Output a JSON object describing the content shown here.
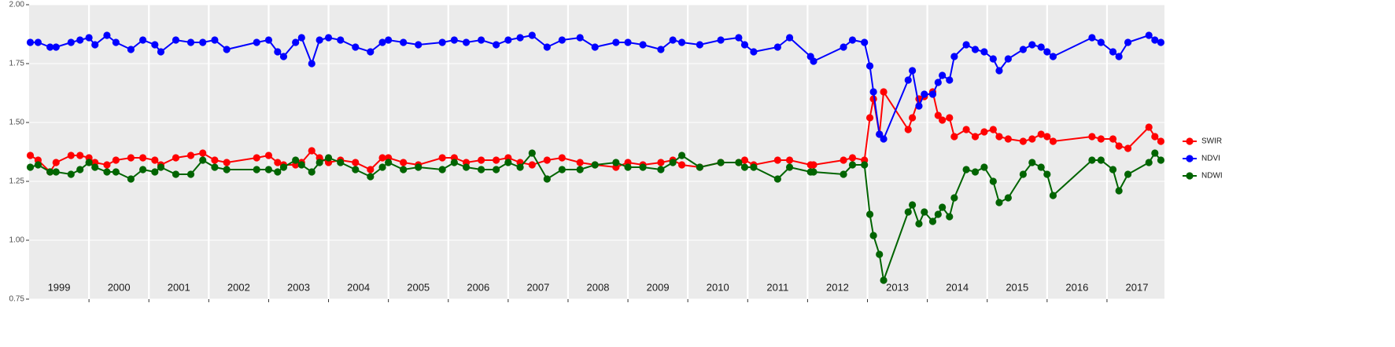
{
  "chart_data": {
    "type": "line",
    "x": [
      1999.02,
      1999.15,
      1999.35,
      1999.45,
      1999.7,
      1999.85,
      2000.0,
      2000.1,
      2000.3,
      2000.45,
      2000.7,
      2000.9,
      2001.1,
      2001.2,
      2001.45,
      2001.7,
      2001.9,
      2002.1,
      2002.3,
      2002.8,
      2003.0,
      2003.15,
      2003.25,
      2003.45,
      2003.55,
      2003.72,
      2003.85,
      2004.0,
      2004.2,
      2004.45,
      2004.7,
      2004.9,
      2005.0,
      2005.25,
      2005.5,
      2005.9,
      2006.1,
      2006.3,
      2006.55,
      2006.8,
      2007.0,
      2007.2,
      2007.4,
      2007.65,
      2007.9,
      2008.2,
      2008.45,
      2008.8,
      2009.0,
      2009.25,
      2009.55,
      2009.75,
      2009.9,
      2010.2,
      2010.55,
      2010.85,
      2010.95,
      2011.1,
      2011.5,
      2011.7,
      2012.05,
      2012.1,
      2012.6,
      2012.75,
      2012.95,
      2013.04,
      2013.1,
      2013.2,
      2013.27,
      2013.68,
      2013.75,
      2013.86,
      2013.95,
      2014.09,
      2014.18,
      2014.25,
      2014.37,
      2014.45,
      2014.65,
      2014.8,
      2014.95,
      2015.1,
      2015.2,
      2015.35,
      2015.6,
      2015.75,
      2015.9,
      2016.0,
      2016.1,
      2016.75,
      2016.9,
      2017.1,
      2017.2,
      2017.35,
      2017.7,
      2017.8,
      2017.9
    ],
    "series": [
      {
        "name": "SWIR",
        "color": "#ff0000",
        "values": [
          1.36,
          1.34,
          1.29,
          1.33,
          1.36,
          1.36,
          1.35,
          1.33,
          1.32,
          1.34,
          1.35,
          1.35,
          1.34,
          1.32,
          1.35,
          1.36,
          1.37,
          1.34,
          1.33,
          1.35,
          1.36,
          1.33,
          1.32,
          1.32,
          1.33,
          1.38,
          1.35,
          1.33,
          1.34,
          1.33,
          1.3,
          1.35,
          1.35,
          1.33,
          1.32,
          1.35,
          1.35,
          1.33,
          1.34,
          1.34,
          1.35,
          1.33,
          1.32,
          1.34,
          1.35,
          1.33,
          1.32,
          1.31,
          1.33,
          1.32,
          1.33,
          1.34,
          1.32,
          1.31,
          1.33,
          1.33,
          1.34,
          1.32,
          1.34,
          1.34,
          1.32,
          1.32,
          1.34,
          1.35,
          1.34,
          1.52,
          1.6,
          1.45,
          1.63,
          1.47,
          1.52,
          1.6,
          1.61,
          1.63,
          1.53,
          1.51,
          1.52,
          1.44,
          1.47,
          1.44,
          1.46,
          1.47,
          1.44,
          1.43,
          1.42,
          1.43,
          1.45,
          1.44,
          1.42,
          1.44,
          1.43,
          1.43,
          1.4,
          1.39,
          1.48,
          1.44,
          1.42
        ]
      },
      {
        "name": "NDVI",
        "color": "#0000ff",
        "values": [
          1.84,
          1.84,
          1.82,
          1.82,
          1.84,
          1.85,
          1.86,
          1.83,
          1.87,
          1.84,
          1.81,
          1.85,
          1.83,
          1.8,
          1.85,
          1.84,
          1.84,
          1.85,
          1.81,
          1.84,
          1.85,
          1.8,
          1.78,
          1.84,
          1.86,
          1.75,
          1.85,
          1.86,
          1.85,
          1.82,
          1.8,
          1.84,
          1.85,
          1.84,
          1.83,
          1.84,
          1.85,
          1.84,
          1.85,
          1.83,
          1.85,
          1.86,
          1.87,
          1.82,
          1.85,
          1.86,
          1.82,
          1.84,
          1.84,
          1.83,
          1.81,
          1.85,
          1.84,
          1.83,
          1.85,
          1.86,
          1.83,
          1.8,
          1.82,
          1.86,
          1.78,
          1.76,
          1.82,
          1.85,
          1.84,
          1.74,
          1.63,
          1.45,
          1.43,
          1.68,
          1.72,
          1.57,
          1.62,
          1.62,
          1.67,
          1.7,
          1.68,
          1.78,
          1.83,
          1.81,
          1.8,
          1.77,
          1.72,
          1.77,
          1.81,
          1.83,
          1.82,
          1.8,
          1.78,
          1.86,
          1.84,
          1.8,
          1.78,
          1.84,
          1.87,
          1.85,
          1.84
        ]
      },
      {
        "name": "NDWI",
        "color": "#006400",
        "values": [
          1.31,
          1.32,
          1.29,
          1.29,
          1.28,
          1.3,
          1.33,
          1.31,
          1.29,
          1.29,
          1.26,
          1.3,
          1.29,
          1.31,
          1.28,
          1.28,
          1.34,
          1.31,
          1.3,
          1.3,
          1.3,
          1.29,
          1.31,
          1.34,
          1.32,
          1.29,
          1.33,
          1.35,
          1.33,
          1.3,
          1.27,
          1.31,
          1.33,
          1.3,
          1.31,
          1.3,
          1.33,
          1.31,
          1.3,
          1.3,
          1.33,
          1.31,
          1.37,
          1.26,
          1.3,
          1.3,
          1.32,
          1.33,
          1.31,
          1.31,
          1.3,
          1.33,
          1.36,
          1.31,
          1.33,
          1.33,
          1.31,
          1.31,
          1.26,
          1.31,
          1.29,
          1.29,
          1.28,
          1.32,
          1.32,
          1.11,
          1.02,
          0.94,
          0.83,
          1.12,
          1.15,
          1.07,
          1.12,
          1.08,
          1.11,
          1.14,
          1.1,
          1.18,
          1.3,
          1.29,
          1.31,
          1.25,
          1.16,
          1.18,
          1.28,
          1.33,
          1.31,
          1.28,
          1.19,
          1.34,
          1.34,
          1.3,
          1.21,
          1.28,
          1.33,
          1.37,
          1.34
        ]
      }
    ],
    "xlim": [
      1999.0,
      2017.96
    ],
    "xticks": [
      2000,
      2001,
      2002,
      2003,
      2004,
      2005,
      2006,
      2007,
      2008,
      2009,
      2010,
      2011,
      2012,
      2013,
      2014,
      2015,
      2016,
      2017
    ],
    "year_labels": [
      {
        "value": 1999.5,
        "label": "1999"
      },
      {
        "value": 2000.5,
        "label": "2000"
      },
      {
        "value": 2001.5,
        "label": "2001"
      },
      {
        "value": 2002.5,
        "label": "2002"
      },
      {
        "value": 2003.5,
        "label": "2003"
      },
      {
        "value": 2004.5,
        "label": "2004"
      },
      {
        "value": 2005.5,
        "label": "2005"
      },
      {
        "value": 2006.5,
        "label": "2006"
      },
      {
        "value": 2007.5,
        "label": "2007"
      },
      {
        "value": 2008.5,
        "label": "2008"
      },
      {
        "value": 2009.5,
        "label": "2009"
      },
      {
        "value": 2010.5,
        "label": "2010"
      },
      {
        "value": 2011.5,
        "label": "2011"
      },
      {
        "value": 2012.5,
        "label": "2012"
      },
      {
        "value": 2013.5,
        "label": "2013"
      },
      {
        "value": 2014.5,
        "label": "2014"
      },
      {
        "value": 2015.5,
        "label": "2015"
      },
      {
        "value": 2016.5,
        "label": "2016"
      },
      {
        "value": 2017.5,
        "label": "2017"
      }
    ],
    "ylim": [
      0.75,
      2.0
    ],
    "yticks": [
      0.75,
      {
        "value": 1,
        "label": "1.00"
      },
      1.25,
      {
        "value": 1.5,
        "label": "1.50"
      },
      1.75,
      {
        "value": 2,
        "label": "2.00"
      }
    ],
    "grid": true,
    "legend": "right"
  }
}
